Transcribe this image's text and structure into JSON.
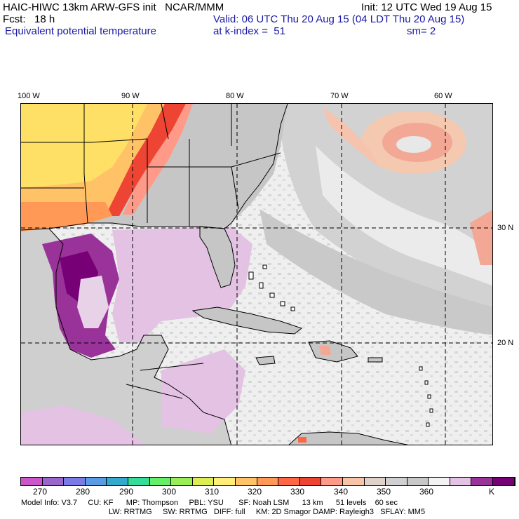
{
  "header": {
    "line1_left": "HAIC-HIWC 13km ARW-GFS init   NCAR/MMM",
    "line2_left": "Fcst:   18 h",
    "field_name": "Equivalent potential temperature",
    "init": "Init: 12 UTC Wed 19 Aug 15",
    "valid": "Valid: 06 UTC Thu 20 Aug 15 (04 LDT Thu 20 Aug 15)",
    "level": "at k-index =  51",
    "smoothing": "sm= 2"
  },
  "longitude_labels": [
    "100 W",
    "90 W",
    "80 W",
    "70 W",
    "60 W"
  ],
  "latitude_labels": [
    "30 N",
    "20 N"
  ],
  "colorbar": {
    "colors": [
      "#cc55cc",
      "#9966cc",
      "#7b7be6",
      "#5a9be6",
      "#33aacc",
      "#33dd99",
      "#66ee66",
      "#99ee55",
      "#ddee55",
      "#ffee77",
      "#ffc266",
      "#ff9955",
      "#ff6644",
      "#ee4433",
      "#ff9988",
      "#f7c4a8",
      "#e0d2c8",
      "#d0d0d0",
      "#c8c8c8",
      "#f3f3f3",
      "#e3c2e3",
      "#993399",
      "#770077"
    ],
    "labels": [
      "270",
      "280",
      "290",
      "300",
      "310",
      "320",
      "330",
      "340",
      "350",
      "360"
    ],
    "unit": "K"
  },
  "footer": {
    "line1": "Model Info: V3.7     CU: KF      MP: Thompson     PBL: YSU       SF: Noah LSM      13 km      51 levels    60 sec",
    "line2": "LW: RRTMG     SW: RRTMG   DIFF: full     KM: 2D Smagor DAMP: Rayleigh3   SFLAY: MM5"
  }
}
